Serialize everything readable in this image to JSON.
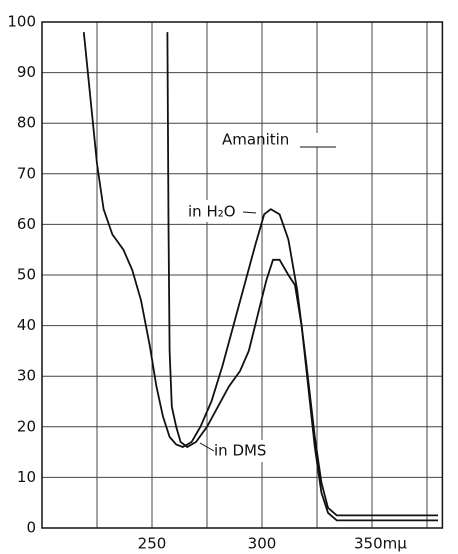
{
  "chart_data": {
    "type": "line",
    "title": "Amanitin",
    "xlim": [
      200,
      382
    ],
    "xticks": [
      250,
      300,
      {
        "value": 350,
        "label": "350mμ"
      }
    ],
    "xminor": [
      225,
      275,
      325,
      375
    ],
    "ylim": [
      0,
      100
    ],
    "yticks": [
      0,
      10,
      20,
      30,
      40,
      50,
      60,
      70,
      80,
      90,
      100
    ],
    "grid": true,
    "color": "#111111",
    "series": [
      {
        "name": "in H₂O",
        "color": "#111111",
        "x": [
          219,
          222,
          225,
          228,
          232,
          237,
          241,
          245,
          249,
          252,
          255,
          258,
          261,
          264,
          268,
          272,
          277,
          282,
          287,
          292,
          297,
          301,
          304,
          308,
          312,
          316,
          320,
          324,
          327,
          330,
          334,
          345,
          380
        ],
        "values": [
          98,
          85,
          72,
          63,
          58,
          55,
          51,
          45,
          36,
          28,
          22,
          18,
          16.5,
          16,
          17,
          20,
          25,
          32,
          40,
          48,
          56,
          62,
          63,
          62,
          57,
          47,
          33,
          18,
          9,
          4,
          2.5,
          2.5,
          2.5
        ]
      },
      {
        "name": "in DMS",
        "color": "#111111",
        "x": [
          257,
          257.5,
          258,
          259,
          261,
          263,
          266,
          270,
          275,
          280,
          285,
          290,
          294,
          298,
          302,
          305,
          308,
          312,
          315,
          318,
          321,
          324,
          327,
          330,
          334,
          345,
          380
        ],
        "values": [
          98,
          60,
          35,
          24,
          20,
          17,
          16,
          17,
          20,
          24,
          28,
          31,
          35,
          42,
          49,
          53,
          53,
          50,
          48,
          40,
          28,
          16,
          7,
          3,
          1.5,
          1.5,
          1.5
        ]
      }
    ]
  }
}
